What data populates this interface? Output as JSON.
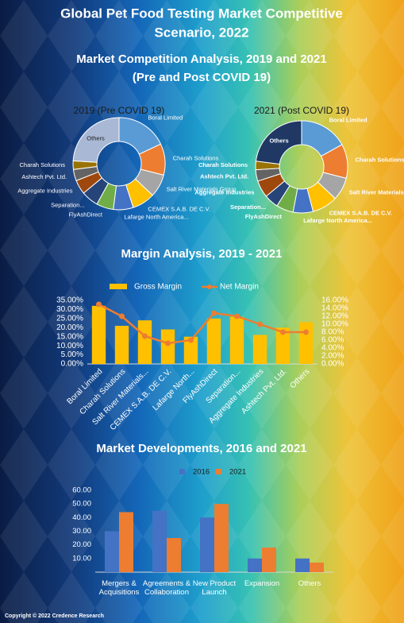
{
  "title": "Global Pet Food Testing Market Competitive",
  "title_line2": "Scenario, 2022",
  "footer": "Copyright © 2022 Credence Research",
  "chart_data": [
    {
      "type": "donut",
      "title": "Market Competition Analysis, 2019 and 2021",
      "subtitle": "(Pre and Post COVID 19)",
      "categories": [
        "Boral Limited",
        "Charah Solutions",
        "Salt River Materials Group",
        "CEMEX S.A.B. DE C.V.",
        "Lafarge North America...",
        "FlyAshDirect",
        "Separation...",
        "Aggregate Industries",
        "Ashtech Pvt. Ltd.",
        "Charah Solutions",
        "Others"
      ],
      "pies": [
        {
          "name": "2019 (Pre COVID 19)",
          "values": [
            18,
            11,
            8,
            8,
            7,
            6,
            6,
            5,
            4,
            3,
            24
          ],
          "colors": [
            "#5b9bd5",
            "#ed7d31",
            "#a5a5a5",
            "#ffc000",
            "#4472c4",
            "#70ad47",
            "#264478",
            "#9e480e",
            "#636363",
            "#997300",
            "#a9b8d4"
          ]
        },
        {
          "name": "2021 (Post COVID 19)",
          "values": [
            17,
            12,
            8,
            9,
            7,
            6,
            5,
            6,
            4,
            3,
            23
          ],
          "colors": [
            "#5b9bd5",
            "#ed7d31",
            "#a5a5a5",
            "#ffc000",
            "#4472c4",
            "#70ad47",
            "#264478",
            "#9e480e",
            "#636363",
            "#997300",
            "#1f3864"
          ]
        }
      ]
    },
    {
      "type": "bar",
      "title": "Margin Analysis, 2019 - 2021",
      "categories": [
        "Boral Limited",
        "Charah Solutions",
        "Salt River Materials...",
        "CEMEX S.A.B. DE C.V.",
        "Lafarge North...",
        "FlyAshDirect",
        "Separation...",
        "Aggregate Industries",
        "Ashtech Pvt. Ltd.",
        "Others"
      ],
      "series": [
        {
          "name": "Gross Margin",
          "color": "#ffc000",
          "values": [
            32,
            21,
            24,
            19,
            15,
            25,
            26,
            16,
            20,
            23
          ]
        },
        {
          "name": "Net Margin",
          "color": "#ed7d31",
          "type": "line",
          "axis": "y2",
          "values": [
            15,
            12,
            7,
            5.2,
            6,
            12.8,
            12,
            10,
            8,
            8
          ]
        }
      ],
      "ylim": [
        0,
        35
      ],
      "yticks": [
        {
          "value": 0,
          "label": "0.00%"
        },
        {
          "value": 5,
          "label": "5.00%"
        },
        {
          "value": 10,
          "label": "10.00%"
        },
        {
          "value": 15,
          "label": "15.00%"
        },
        {
          "value": 20,
          "label": "20.00%"
        },
        {
          "value": 25,
          "label": "25.00%"
        },
        {
          "value": 30,
          "label": "30.00%"
        },
        {
          "value": 35,
          "label": "35.00%"
        }
      ],
      "y2lim": [
        0,
        16
      ],
      "y2ticks": [
        {
          "value": 0,
          "label": "0.00%"
        },
        {
          "value": 2,
          "label": "2.00%"
        },
        {
          "value": 4,
          "label": "4.00%"
        },
        {
          "value": 6,
          "label": "6.00%"
        },
        {
          "value": 8,
          "label": "8.00%"
        },
        {
          "value": 10,
          "label": "10.00%"
        },
        {
          "value": 12,
          "label": "12.00%"
        },
        {
          "value": 14,
          "label": "14.00%"
        },
        {
          "value": 16,
          "label": "16.00%"
        }
      ]
    },
    {
      "type": "bar",
      "title": "Market Developments, 2016 and 2021",
      "categories": [
        "Mergers & Acquisitions",
        "Agreements & Collaboration",
        "New Product Launch",
        "Expansion",
        "Others"
      ],
      "series": [
        {
          "name": "2016",
          "color": "#4472c4",
          "values": [
            30,
            45,
            40,
            10,
            10
          ]
        },
        {
          "name": "2021",
          "color": "#ed7d31",
          "values": [
            44,
            25,
            50,
            18,
            7
          ]
        }
      ],
      "ylim": [
        0,
        60
      ],
      "yticks": [
        {
          "value": 10,
          "label": "10.00"
        },
        {
          "value": 20,
          "label": "20.00"
        },
        {
          "value": 30,
          "label": "30.00"
        },
        {
          "value": 40,
          "label": "40.00"
        },
        {
          "value": 50,
          "label": "50.00"
        },
        {
          "value": 60,
          "label": "60.00"
        }
      ]
    }
  ]
}
